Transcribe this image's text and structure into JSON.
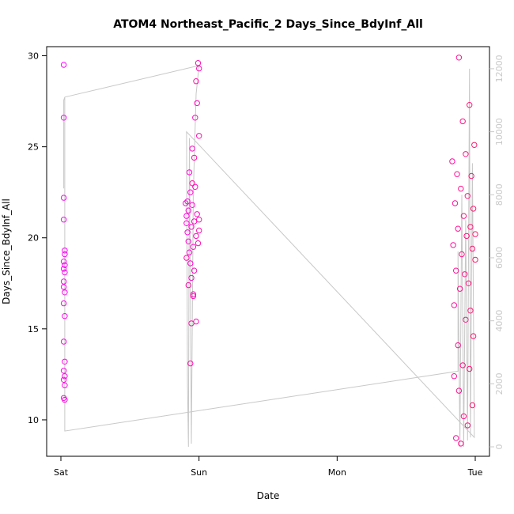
{
  "chart_data": {
    "type": "scatter",
    "title": "ATOM4 Northeast_Pacific_2 Days_Since_BdyInf_All",
    "xlabel": "Date",
    "ylabel": "Days_Since_BdyInf_All",
    "x_ticks": [
      "Sat",
      "Sun",
      "Mon",
      "Tue"
    ],
    "xlim": [
      "Sat",
      "Tue"
    ],
    "ylim": [
      8,
      30.5
    ],
    "y_ticks": [
      10,
      15,
      20,
      25,
      30
    ],
    "y2_ticks": [
      0,
      2000,
      4000,
      6000,
      8000,
      10000,
      12000
    ],
    "y2lim": [
      -300,
      12700
    ],
    "grid": false,
    "legend": "none",
    "series": [
      {
        "marker": "open-circle",
        "color": "#ff00ff",
        "color_end": "#ff1a6a",
        "axis": "left",
        "points": [
          [
            "Sat 00:30",
            29.5
          ],
          [
            "Sat 00:30",
            26.6
          ],
          [
            "Sat 00:30",
            22.2
          ],
          [
            "Sat 00:30",
            21.0
          ],
          [
            "Sat 00:40",
            19.3
          ],
          [
            "Sat 00:40",
            19.1
          ],
          [
            "Sat 00:30",
            18.7
          ],
          [
            "Sat 00:40",
            18.5
          ],
          [
            "Sat 00:30",
            18.3
          ],
          [
            "Sat 00:40",
            18.1
          ],
          [
            "Sat 00:30",
            17.6
          ],
          [
            "Sat 00:30",
            17.3
          ],
          [
            "Sat 00:40",
            17.0
          ],
          [
            "Sat 00:30",
            16.4
          ],
          [
            "Sat 00:40",
            15.7
          ],
          [
            "Sat 00:30",
            14.3
          ],
          [
            "Sat 00:40",
            13.2
          ],
          [
            "Sat 00:30",
            12.7
          ],
          [
            "Sat 00:40",
            12.4
          ],
          [
            "Sat 00:30",
            12.2
          ],
          [
            "Sat 00:40",
            11.9
          ],
          [
            "Sat 00:30",
            11.2
          ],
          [
            "Sat 00:40",
            11.1
          ],
          [
            "Sat 21:40",
            21.9
          ],
          [
            "Sat 21:50",
            21.2
          ],
          [
            "Sat 21:50",
            20.8
          ],
          [
            "Sat 22:00",
            22.0
          ],
          [
            "Sat 22:00",
            20.3
          ],
          [
            "Sat 22:10",
            19.8
          ],
          [
            "Sat 22:10",
            21.5
          ],
          [
            "Sat 22:20",
            23.6
          ],
          [
            "Sat 22:20",
            19.2
          ],
          [
            "Sat 22:30",
            18.6
          ],
          [
            "Sat 22:30",
            22.5
          ],
          [
            "Sat 22:40",
            20.6
          ],
          [
            "Sat 22:40",
            17.8
          ],
          [
            "Sat 22:50",
            21.8
          ],
          [
            "Sat 22:50",
            24.9
          ],
          [
            "Sat 23:00",
            19.5
          ],
          [
            "Sat 23:00",
            16.9
          ],
          [
            "Sat 23:10",
            20.9
          ],
          [
            "Sat 23:10",
            18.2
          ],
          [
            "Sat 23:20",
            22.8
          ],
          [
            "Sat 23:20",
            26.6
          ],
          [
            "Sat 23:30",
            20.1
          ],
          [
            "Sat 23:30",
            15.4
          ],
          [
            "Sat 23:40",
            21.3
          ],
          [
            "Sat 23:40",
            27.4
          ],
          [
            "Sat 23:50",
            19.7
          ],
          [
            "Sat 23:50",
            29.6
          ],
          [
            "Sun 00:00",
            29.3
          ],
          [
            "Sun 00:00",
            25.6
          ],
          [
            "Sun 00:00",
            21.0
          ],
          [
            "Sun 00:00",
            20.4
          ],
          [
            "Sat 22:30",
            13.1
          ],
          [
            "Sat 22:40",
            15.3
          ],
          [
            "Sat 23:00",
            16.8
          ],
          [
            "Sat 23:10",
            24.4
          ],
          [
            "Sat 21:50",
            18.9
          ],
          [
            "Sat 22:10",
            17.4
          ],
          [
            "Sat 22:50",
            23.0
          ],
          [
            "Sat 23:30",
            28.6
          ],
          [
            "Mon 20:00",
            24.2
          ],
          [
            "Mon 20:10",
            19.6
          ],
          [
            "Mon 20:20",
            16.3
          ],
          [
            "Mon 20:20",
            12.4
          ],
          [
            "Mon 20:30",
            21.9
          ],
          [
            "Mon 20:40",
            9.0
          ],
          [
            "Mon 20:40",
            18.2
          ],
          [
            "Mon 20:50",
            23.5
          ],
          [
            "Mon 21:00",
            14.1
          ],
          [
            "Mon 21:00",
            20.5
          ],
          [
            "Mon 21:10",
            29.9
          ],
          [
            "Mon 21:10",
            11.6
          ],
          [
            "Mon 21:20",
            17.2
          ],
          [
            "Mon 21:30",
            22.7
          ],
          [
            "Mon 21:30",
            8.7
          ],
          [
            "Mon 21:40",
            19.1
          ],
          [
            "Mon 21:50",
            26.4
          ],
          [
            "Mon 21:50",
            13.0
          ],
          [
            "Mon 22:00",
            21.2
          ],
          [
            "Mon 22:00",
            10.2
          ],
          [
            "Mon 22:10",
            18.0
          ],
          [
            "Mon 22:20",
            24.6
          ],
          [
            "Mon 22:20",
            15.5
          ],
          [
            "Mon 22:30",
            20.1
          ],
          [
            "Mon 22:40",
            9.7
          ],
          [
            "Mon 22:40",
            22.3
          ],
          [
            "Mon 22:50",
            17.5
          ],
          [
            "Mon 23:00",
            27.3
          ],
          [
            "Mon 23:00",
            12.8
          ],
          [
            "Mon 23:10",
            20.6
          ],
          [
            "Mon 23:10",
            16.0
          ],
          [
            "Mon 23:20",
            23.4
          ],
          [
            "Mon 23:30",
            19.4
          ],
          [
            "Mon 23:30",
            10.8
          ],
          [
            "Mon 23:40",
            21.6
          ],
          [
            "Mon 23:40",
            14.6
          ],
          [
            "Mon 23:50",
            25.1
          ],
          [
            "Tue 00:00",
            18.8
          ],
          [
            "Tue 00:00",
            20.2
          ]
        ]
      },
      {
        "type": "line",
        "color": "#c8c8c8",
        "axis": "right",
        "points": [
          [
            "Sat 00:30",
            8200
          ],
          [
            "Sat 00:30",
            11000
          ],
          [
            "Sat 00:40",
            11100
          ],
          [
            "Sat 00:40",
            500
          ],
          [
            "Mon 21:00",
            2400
          ],
          [
            "Mon 21:00",
            6200
          ],
          [
            "Mon 21:20",
            0
          ],
          [
            "Mon 21:40",
            8000
          ],
          [
            "Mon 22:00",
            0
          ],
          [
            "Mon 22:20",
            7200
          ],
          [
            "Mon 22:40",
            200
          ],
          [
            "Mon 23:00",
            12000
          ],
          [
            "Mon 23:10",
            300
          ],
          [
            "Mon 23:30",
            9000
          ],
          [
            "Mon 23:50",
            300
          ],
          [
            "Sat 21:50",
            10000
          ],
          [
            "Sat 22:00",
            2000
          ],
          [
            "Sat 22:10",
            0
          ],
          [
            "Sat 22:20",
            9800
          ],
          [
            "Sat 22:40",
            100
          ],
          [
            "Sat 23:00",
            8000
          ],
          [
            "Sat 23:30",
            11200
          ],
          [
            "Sun 00:00",
            12100
          ],
          [
            "Sat 00:40",
            11100
          ]
        ]
      }
    ]
  }
}
